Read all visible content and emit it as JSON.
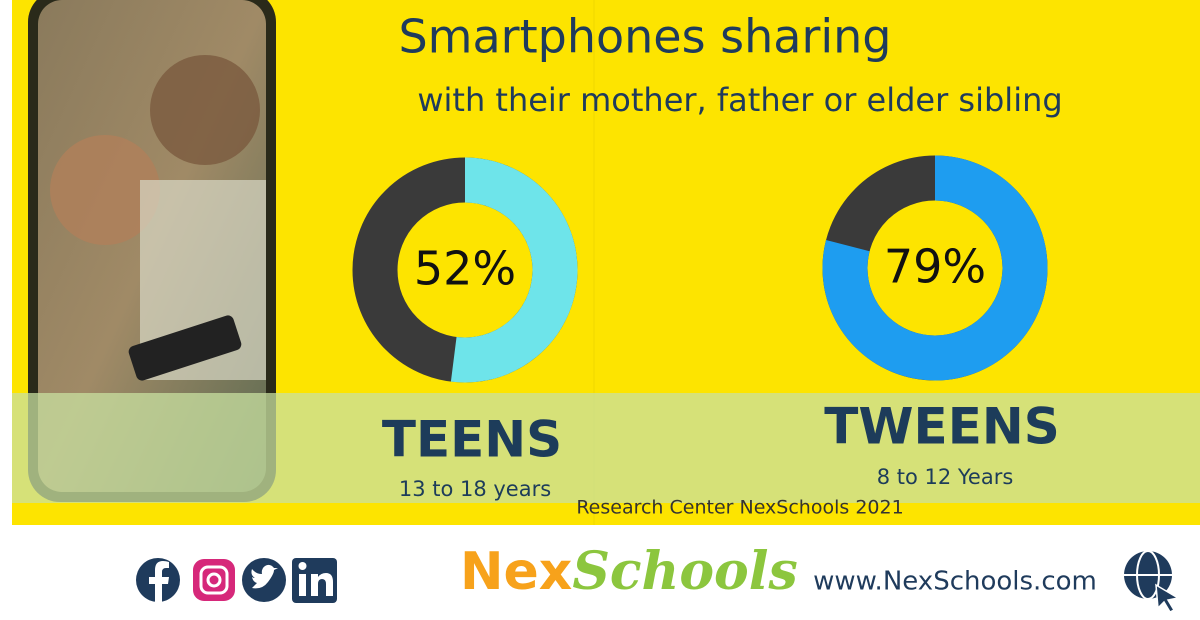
{
  "header": {
    "title": "Smartphones sharing",
    "subtitle": "with their mother, father or elder sibling"
  },
  "chart_data": [
    {
      "type": "donut",
      "values": [
        52
      ],
      "value_labels": [
        "52%"
      ],
      "label": "TEENS",
      "sublabel": "13 to 18 years",
      "color": "#6ee4ea",
      "track_color": "#3a3a3a"
    },
    {
      "type": "donut",
      "values": [
        79
      ],
      "value_labels": [
        "79%"
      ],
      "label": "TWEENS",
      "sublabel": "8 to 12 Years",
      "color": "#1e9df0",
      "track_color": "#3a3a3a"
    }
  ],
  "source": "Research Center NexSchools 2021",
  "footer": {
    "brand": [
      "Nex",
      "Schools"
    ],
    "website": "www.NexSchools.com"
  }
}
